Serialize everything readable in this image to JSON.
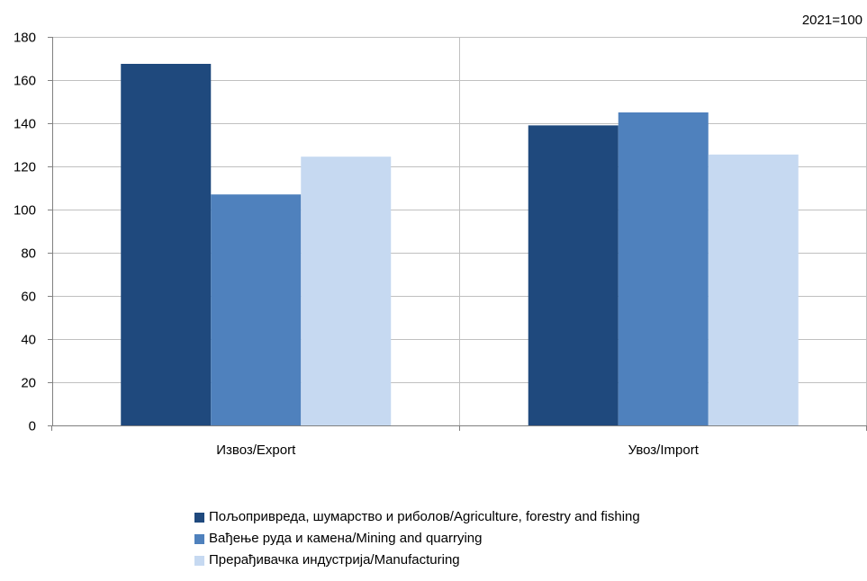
{
  "chart_data": {
    "type": "bar",
    "note": "2021=100",
    "categories": [
      "Извоз/Export",
      "Увоз/Import"
    ],
    "series": [
      {
        "name": "Пољопривреда, шумарство и риболов/Agriculture, forestry and fishing",
        "values": [
          167.5,
          139
        ],
        "color": "#1f497d"
      },
      {
        "name": "Вађење руда и камена/Mining and quarrying",
        "values": [
          107,
          145
        ],
        "color": "#4f81bd"
      },
      {
        "name": "Прерађивачка индустрија/Manufacturing",
        "values": [
          124.5,
          125.5
        ],
        "color": "#c6d9f1"
      }
    ],
    "ylim": [
      0,
      180
    ],
    "yticks": [
      0,
      20,
      40,
      60,
      80,
      100,
      120,
      140,
      160,
      180
    ],
    "grid": true,
    "legend_position": "bottom",
    "xlabel": "",
    "ylabel": ""
  }
}
